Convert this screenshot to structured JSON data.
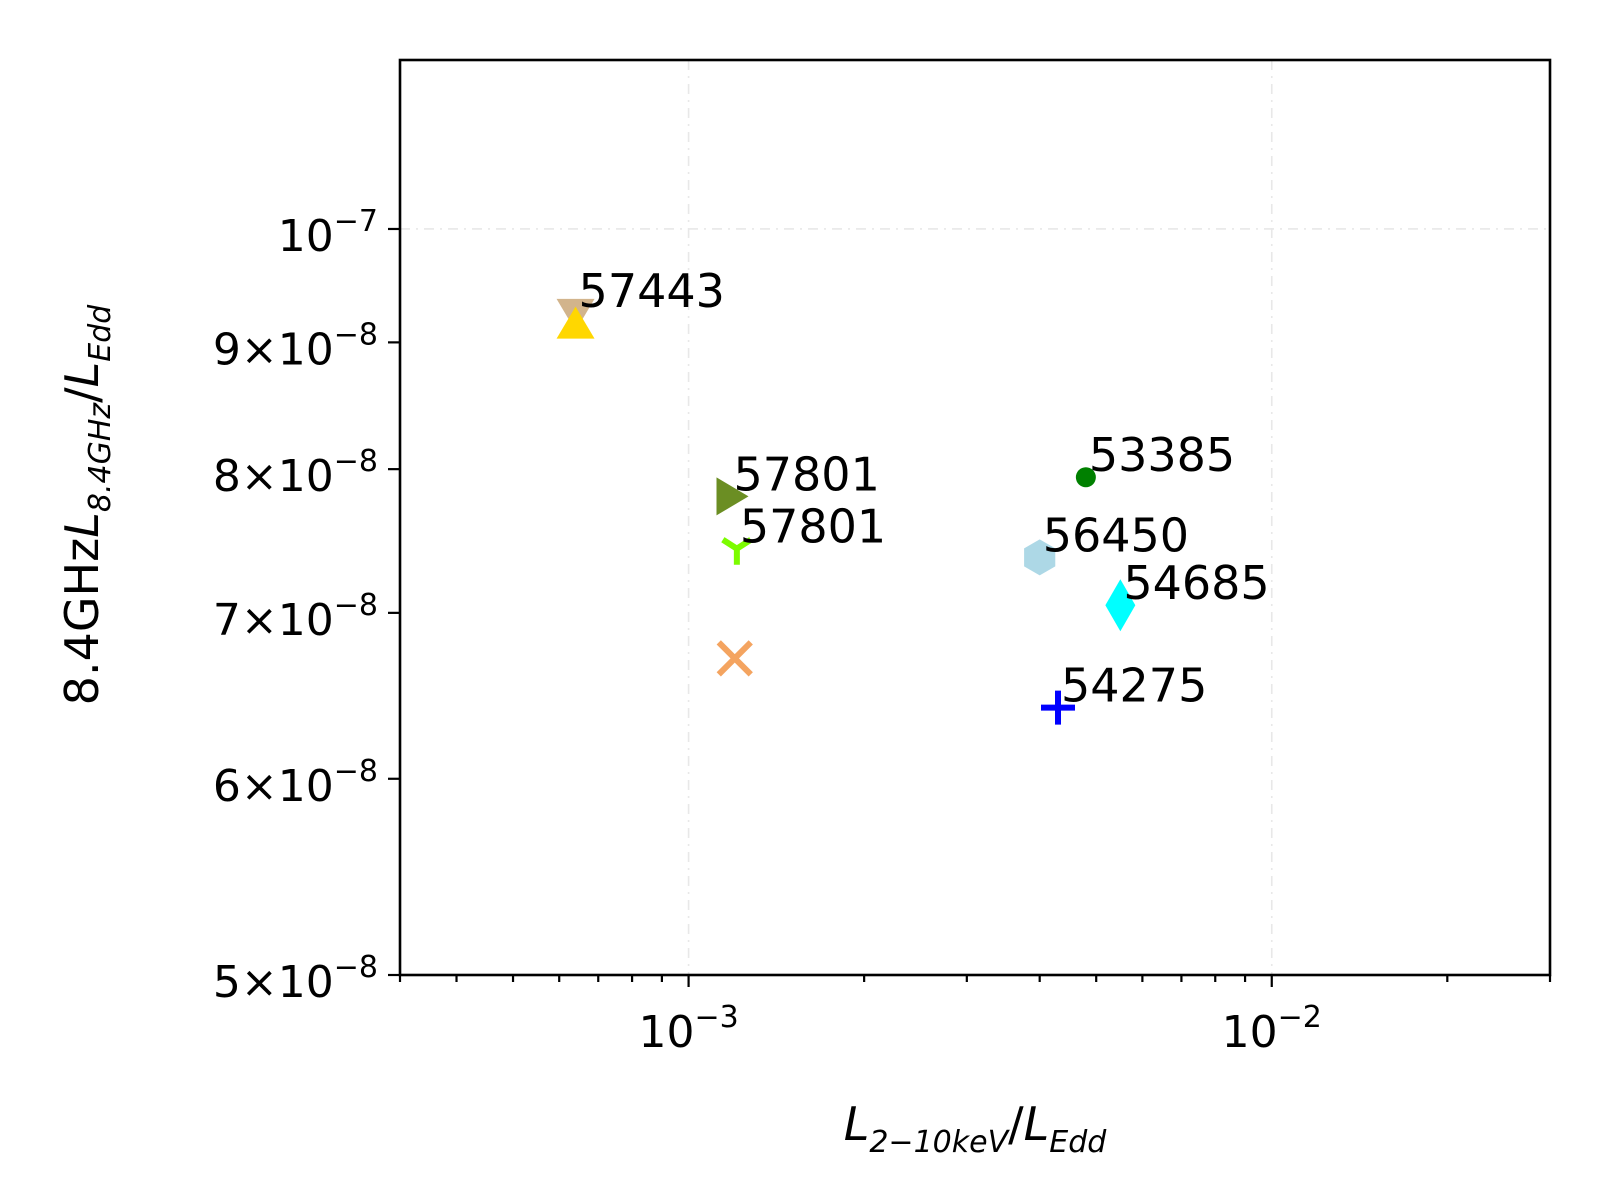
{
  "chart_data": {
    "type": "scatter",
    "xlabel": "L_{2-10keV}/L_{Edd}",
    "ylabel": "8.4GHzL_{8.4GHz}/L_{Edd}",
    "x_scale": "log",
    "y_scale": "log",
    "xlim": [
      0.00032,
      0.03
    ],
    "ylim": [
      5e-08,
      1.17e-07
    ],
    "grid": true,
    "x_major_ticks": [
      0.001,
      0.01
    ],
    "x_tick_labels": [
      {
        "base": "10",
        "exp": "−3"
      },
      {
        "base": "10",
        "exp": "−2"
      }
    ],
    "y_ticks": [
      {
        "value": 1e-07,
        "base": "10",
        "exp": "−7",
        "prefix": ""
      },
      {
        "value": 9e-08,
        "base": "10",
        "exp": "−8",
        "prefix": "9×"
      },
      {
        "value": 8e-08,
        "base": "10",
        "exp": "−8",
        "prefix": "8×"
      },
      {
        "value": 7e-08,
        "base": "10",
        "exp": "−8",
        "prefix": "7×"
      },
      {
        "value": 6e-08,
        "base": "10",
        "exp": "−8",
        "prefix": "6×"
      },
      {
        "value": 5e-08,
        "base": "10",
        "exp": "−8",
        "prefix": "5×"
      }
    ],
    "points": [
      {
        "label": "57443",
        "x": 0.00064,
        "y": 9.25e-08,
        "marker": "triangle-down",
        "color": "#d2b48c"
      },
      {
        "label": "57443",
        "x": 0.00064,
        "y": 9.15e-08,
        "marker": "triangle-up",
        "color": "#ffd700"
      },
      {
        "label": "57801",
        "x": 0.00118,
        "y": 7.8e-08,
        "marker": "triangle-right",
        "color": "#6b8e23"
      },
      {
        "label": "57801",
        "x": 0.00121,
        "y": 7.43e-08,
        "marker": "tri-down",
        "color": "#7cfc00"
      },
      {
        "label": "57801",
        "x": 0.0012,
        "y": 6.71e-08,
        "marker": "x",
        "color": "#f4a460"
      },
      {
        "label": "53385",
        "x": 0.0048,
        "y": 7.94e-08,
        "marker": "circle",
        "color": "#008000"
      },
      {
        "label": "56450",
        "x": 0.004,
        "y": 7.37e-08,
        "marker": "hexagon",
        "color": "#add8e6"
      },
      {
        "label": "54685",
        "x": 0.0055,
        "y": 7.05e-08,
        "marker": "diamond",
        "color": "#00ffff"
      },
      {
        "label": "54275",
        "x": 0.0043,
        "y": 6.41e-08,
        "marker": "plus",
        "color": "#0000ff"
      }
    ]
  }
}
